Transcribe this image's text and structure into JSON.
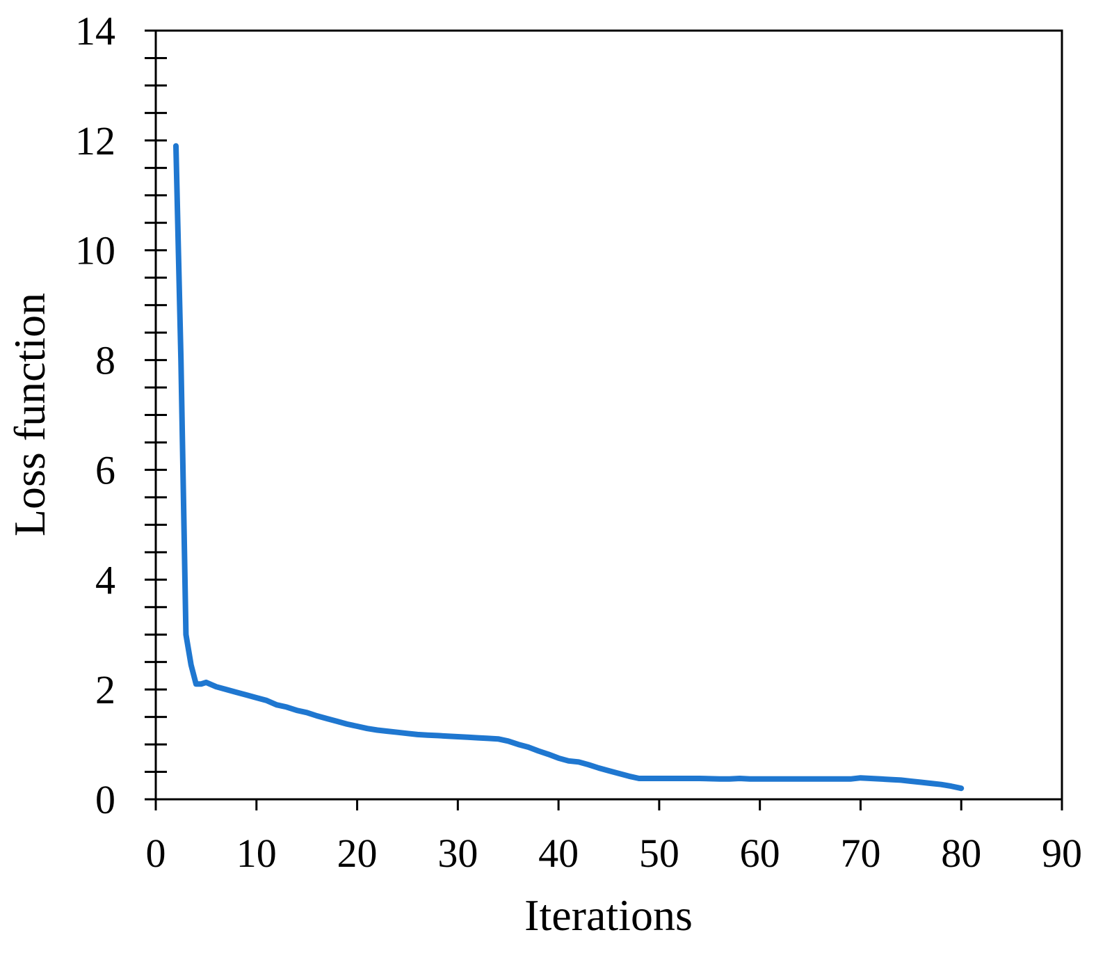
{
  "chart_data": {
    "type": "line",
    "xlabel": "Iterations",
    "ylabel": "Loss function",
    "xlim": [
      0,
      90
    ],
    "ylim": [
      0,
      14
    ],
    "xticks": [
      0,
      10,
      20,
      30,
      40,
      50,
      60,
      70,
      80,
      90
    ],
    "yticks": [
      0,
      2,
      4,
      6,
      8,
      10,
      12,
      14
    ],
    "grid": false,
    "legend": "none",
    "line_color": "#1f77d0",
    "series": [
      {
        "x": [
          2,
          2.5,
          3,
          3.5,
          4,
          4.5,
          5,
          6,
          7,
          8,
          9,
          10,
          11,
          12,
          13,
          14,
          15,
          16,
          17,
          18,
          19,
          20,
          21,
          22,
          23,
          24,
          25,
          26,
          27,
          28,
          29,
          30,
          31,
          32,
          33,
          34,
          35,
          36,
          37,
          38,
          39,
          40,
          41,
          42,
          43,
          44,
          45,
          46,
          47,
          48,
          49,
          50,
          52,
          54,
          56,
          57,
          58,
          59,
          60,
          62,
          64,
          66,
          68,
          69,
          70,
          71,
          72,
          73,
          74,
          75,
          76,
          77,
          78,
          79,
          80
        ],
        "y": [
          11.9,
          8.0,
          3.0,
          2.45,
          2.1,
          2.1,
          2.13,
          2.05,
          2.0,
          1.95,
          1.9,
          1.85,
          1.8,
          1.72,
          1.68,
          1.62,
          1.58,
          1.52,
          1.47,
          1.42,
          1.37,
          1.33,
          1.29,
          1.26,
          1.24,
          1.22,
          1.2,
          1.18,
          1.17,
          1.16,
          1.15,
          1.14,
          1.13,
          1.12,
          1.11,
          1.1,
          1.06,
          1.0,
          0.95,
          0.88,
          0.82,
          0.75,
          0.7,
          0.68,
          0.63,
          0.57,
          0.52,
          0.47,
          0.42,
          0.38,
          0.38,
          0.38,
          0.38,
          0.38,
          0.37,
          0.37,
          0.38,
          0.37,
          0.37,
          0.37,
          0.37,
          0.37,
          0.37,
          0.37,
          0.39,
          0.38,
          0.37,
          0.36,
          0.35,
          0.33,
          0.31,
          0.29,
          0.27,
          0.24,
          0.2
        ]
      }
    ]
  }
}
